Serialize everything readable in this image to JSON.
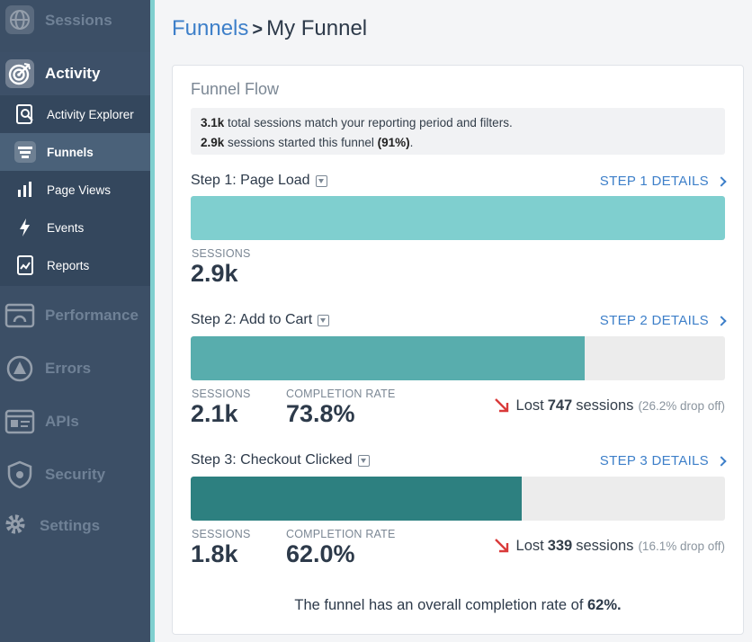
{
  "sidebar": {
    "sessions": "Sessions",
    "activity": "Activity",
    "activity_items": [
      "Activity Explorer",
      "Funnels",
      "Page Views",
      "Events",
      "Reports"
    ],
    "performance": "Performance",
    "errors": "Errors",
    "apis": "APIs",
    "security": "Security",
    "settings": "Settings"
  },
  "breadcrumb": {
    "parent": "Funnels",
    "separator": ">",
    "current": "My Funnel"
  },
  "card": {
    "title": "Funnel Flow",
    "summary": {
      "total": "3.1k",
      "total_text": " total sessions match your reporting period and filters.",
      "started": "2.9k",
      "started_text": " sessions started this funnel ",
      "started_pct": "(91%)",
      "end": "."
    }
  },
  "labels": {
    "sessions": "SESSIONS",
    "completion": "COMPLETION RATE",
    "lost": "Lost",
    "lost_suffix": "sessions"
  },
  "steps": [
    {
      "title": "Step 1: Page Load",
      "details": "STEP 1 DETAILS",
      "sessions": "2.9k",
      "fill_fraction": 1.0,
      "color": "#7fcfcf"
    },
    {
      "title": "Step 2: Add to Cart",
      "details": "STEP 2 DETAILS",
      "sessions": "2.1k",
      "completion": "73.8%",
      "lost": "747",
      "drop": "(26.2% drop off)",
      "fill_fraction": 0.738,
      "color": "#58adad"
    },
    {
      "title": "Step 3: Checkout Clicked",
      "details": "STEP 3 DETAILS",
      "sessions": "1.8k",
      "completion": "62.0%",
      "lost": "339",
      "drop": "(16.1% drop off)",
      "fill_fraction": 0.62,
      "color": "#2d8080"
    }
  ],
  "overall": {
    "text": "The funnel has an overall completion rate of ",
    "rate": "62%.",
    "end": ""
  },
  "icons": [
    "globe-icon",
    "target-icon",
    "search-doc-icon",
    "funnel-icon",
    "bar-chart-icon",
    "bolt-icon",
    "report-icon",
    "window-icon",
    "warning-icon",
    "api-icon",
    "shield-icon",
    "gear-icon",
    "chevron-right-icon",
    "caret-down-icon",
    "arrow-down-icon"
  ]
}
